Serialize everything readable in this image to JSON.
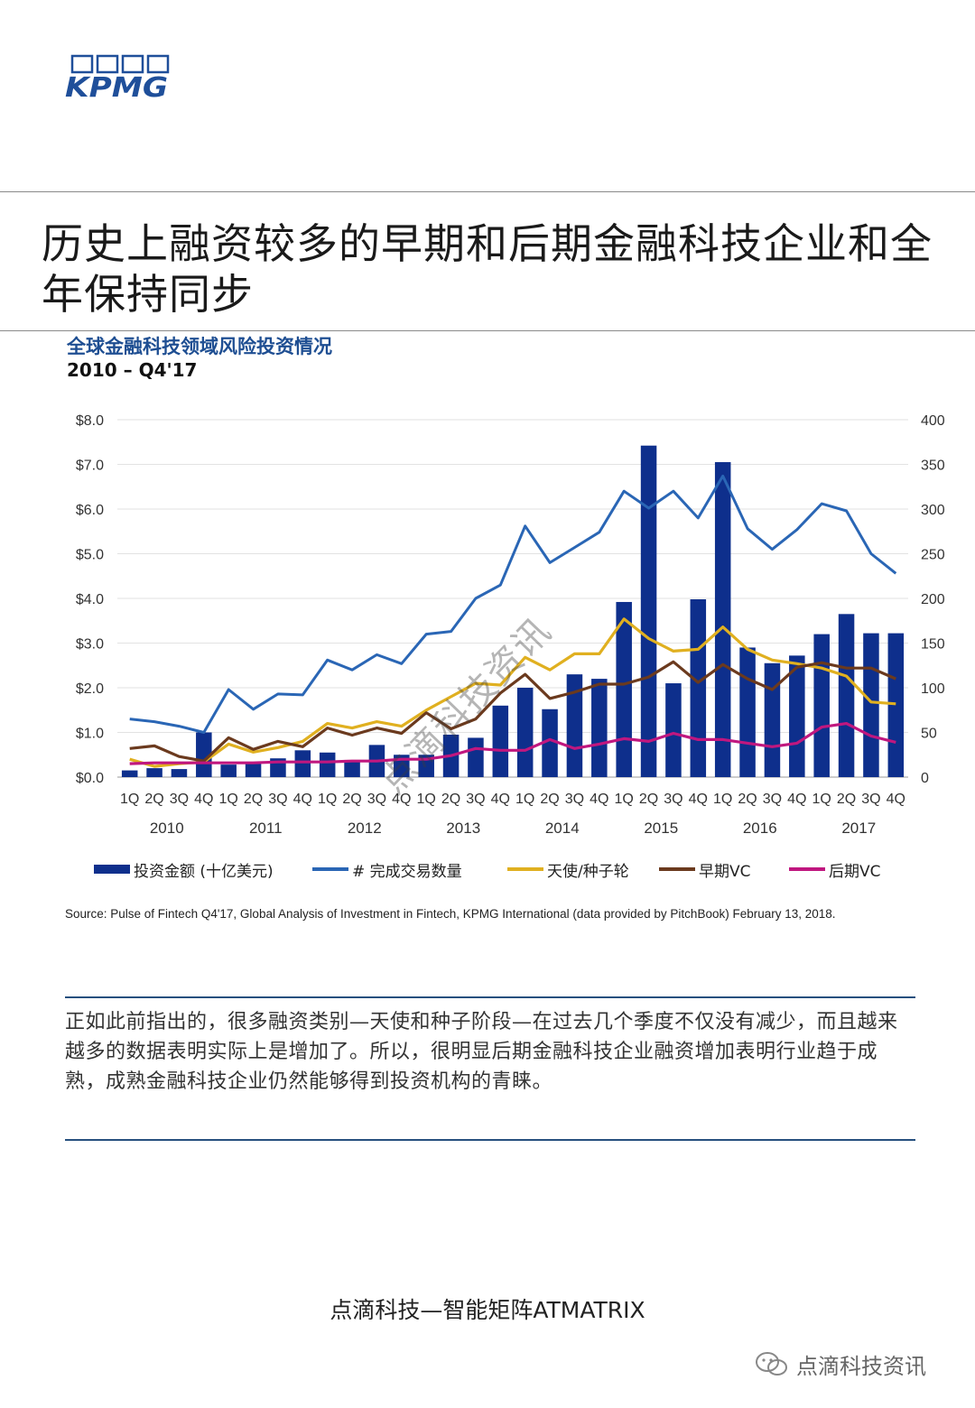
{
  "logo": {
    "text": "KPMG"
  },
  "page_title": "历史上融资较多的早期和后期金融科技企业和全年保持同步",
  "chart_data": {
    "type": "bar",
    "title": "全球金融科技领域风险投资情况",
    "subtitle": "2010 – Q4'17",
    "categories": [
      "1Q",
      "2Q",
      "3Q",
      "4Q",
      "1Q",
      "2Q",
      "3Q",
      "4Q",
      "1Q",
      "2Q",
      "3Q",
      "4Q",
      "1Q",
      "2Q",
      "3Q",
      "4Q",
      "1Q",
      "2Q",
      "3Q",
      "4Q",
      "1Q",
      "2Q",
      "3Q",
      "4Q",
      "1Q",
      "2Q",
      "3Q",
      "4Q",
      "1Q",
      "2Q",
      "3Q",
      "4Q"
    ],
    "years": [
      "2010",
      "2011",
      "2012",
      "2013",
      "2014",
      "2015",
      "2016",
      "2017"
    ],
    "y_left": {
      "min": 0,
      "max": 8,
      "ticks": [
        "$0.0",
        "$1.0",
        "$2.0",
        "$3.0",
        "$4.0",
        "$5.0",
        "$6.0",
        "$7.0",
        "$8.0"
      ]
    },
    "y_right": {
      "min": 0,
      "max": 400,
      "ticks": [
        "0",
        "50",
        "100",
        "150",
        "200",
        "250",
        "300",
        "350",
        "400"
      ]
    },
    "series": [
      {
        "name": "投资金额 (十亿美元)",
        "type": "bar",
        "axis": "left",
        "color": "#0e2f8c",
        "values": [
          0.15,
          0.2,
          0.18,
          1.0,
          0.28,
          0.3,
          0.42,
          0.6,
          0.55,
          0.38,
          0.72,
          0.5,
          0.5,
          0.95,
          0.88,
          1.6,
          2.0,
          1.52,
          2.3,
          2.2,
          3.92,
          7.42,
          2.1,
          3.98,
          7.05,
          2.9,
          2.55,
          2.72,
          3.2,
          3.65,
          3.22,
          3.22
        ]
      },
      {
        "name": "# 完成交易数量",
        "type": "line",
        "axis": "right",
        "color": "#2a66b5",
        "values": [
          65,
          62,
          57,
          50,
          98,
          76,
          93,
          92,
          131,
          120,
          137,
          127,
          160,
          163,
          200,
          215,
          281,
          240,
          257,
          274,
          320,
          301,
          320,
          290,
          337,
          278,
          255,
          277,
          306,
          298,
          250,
          228
        ]
      },
      {
        "name": "天使/种子轮",
        "type": "line",
        "axis": "right",
        "color": "#e0b020",
        "values": [
          20,
          12,
          15,
          17,
          37,
          28,
          33,
          40,
          60,
          55,
          62,
          57,
          75,
          90,
          105,
          103,
          134,
          120,
          138,
          138,
          177,
          155,
          141,
          143,
          168,
          143,
          131,
          127,
          122,
          113,
          84,
          82
        ]
      },
      {
        "name": "早期VC",
        "type": "line",
        "axis": "right",
        "color": "#6b3a1e",
        "values": [
          32,
          35,
          23,
          18,
          44,
          31,
          40,
          34,
          55,
          47,
          55,
          49,
          72,
          54,
          65,
          94,
          115,
          88,
          95,
          104,
          104,
          112,
          129,
          106,
          126,
          110,
          98,
          123,
          128,
          122,
          122,
          110
        ]
      },
      {
        "name": "后期VC",
        "type": "line",
        "axis": "right",
        "color": "#c0177f",
        "values": [
          15,
          16,
          16,
          16,
          16,
          16,
          17,
          17,
          17,
          18,
          18,
          20,
          20,
          24,
          32,
          30,
          30,
          42,
          32,
          37,
          43,
          40,
          49,
          42,
          42,
          38,
          34,
          38,
          56,
          60,
          46,
          39
        ]
      }
    ],
    "legend_position": "bottom"
  },
  "source": "Source: Pulse of Fintech Q4'17, Global Analysis of Investment in Fintech, KPMG International (data provided by PitchBook) February 13, 2018.",
  "body_text": "正如此前指出的，很多融资类别—天使和种子阶段—在过去几个季度不仅没有减少，而且越来越多的数据表明实际上是增加了。所以，很明显后期金融科技企业融资增加表明行业趋于成熟，成熟金融科技企业仍然能够得到投资机构的青睐。",
  "footer": "点滴科技—智能矩阵ATMATRIX",
  "watermark": "点滴科技资讯",
  "diagonal_watermark": "点滴科技资讯"
}
